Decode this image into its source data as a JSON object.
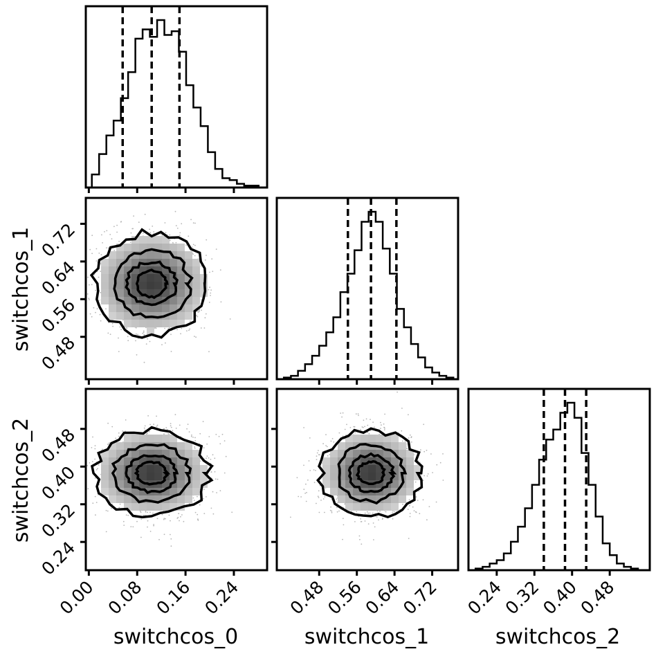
{
  "chart_data": {
    "type": "corner",
    "parameters": [
      "switchcos_0",
      "switchcos_1",
      "switchcos_2"
    ],
    "xlabels": [
      "switchcos_0",
      "switchcos_1",
      "switchcos_2"
    ],
    "ylabels": [
      "",
      "switchcos_1",
      "switchcos_2"
    ],
    "ranges": [
      [
        -0.005,
        0.295
      ],
      [
        0.39,
        0.775
      ],
      [
        0.18,
        0.565
      ]
    ],
    "ticks": [
      [
        "0.00",
        "0.08",
        "0.16",
        "0.24"
      ],
      [
        "0.48",
        "0.56",
        "0.64",
        "0.72"
      ],
      [
        "0.24",
        "0.32",
        "0.40",
        "0.48"
      ]
    ],
    "quantiles": [
      [
        0.056,
        0.104,
        0.15
      ],
      [
        0.541,
        0.59,
        0.644
      ],
      [
        0.34,
        0.385,
        0.43
      ]
    ],
    "histograms": [
      {
        "param": "switchcos_0",
        "bin_edges": [
          0.005,
          0.017,
          0.029,
          0.041,
          0.053,
          0.065,
          0.077,
          0.089,
          0.101,
          0.113,
          0.125,
          0.137,
          0.149,
          0.161,
          0.173,
          0.185,
          0.197,
          0.209,
          0.221,
          0.233,
          0.245,
          0.257,
          0.269,
          0.281
        ],
        "counts": [
          0.07,
          0.18,
          0.28,
          0.36,
          0.48,
          0.62,
          0.8,
          0.85,
          0.81,
          0.9,
          0.82,
          0.84,
          0.73,
          0.55,
          0.43,
          0.33,
          0.19,
          0.1,
          0.05,
          0.04,
          0.02,
          0.01,
          0.01
        ]
      },
      {
        "param": "switchcos_1",
        "bin_edges": [
          0.405,
          0.42,
          0.435,
          0.45,
          0.465,
          0.48,
          0.495,
          0.51,
          0.525,
          0.54,
          0.555,
          0.57,
          0.585,
          0.6,
          0.615,
          0.63,
          0.645,
          0.66,
          0.675,
          0.69,
          0.705,
          0.72,
          0.735,
          0.75,
          0.765
        ],
        "counts": [
          0.01,
          0.02,
          0.05,
          0.09,
          0.14,
          0.2,
          0.28,
          0.37,
          0.52,
          0.63,
          0.77,
          0.94,
          1.0,
          0.94,
          0.78,
          0.63,
          0.42,
          0.31,
          0.21,
          0.13,
          0.07,
          0.04,
          0.02,
          0.01
        ]
      },
      {
        "param": "switchcos_2",
        "bin_edges": [
          0.195,
          0.21,
          0.225,
          0.24,
          0.255,
          0.27,
          0.285,
          0.3,
          0.315,
          0.33,
          0.345,
          0.36,
          0.375,
          0.39,
          0.405,
          0.42,
          0.435,
          0.45,
          0.465,
          0.48,
          0.495,
          0.51,
          0.525,
          0.54
        ],
        "counts": [
          0.01,
          0.02,
          0.04,
          0.06,
          0.1,
          0.17,
          0.26,
          0.37,
          0.51,
          0.66,
          0.78,
          0.84,
          0.94,
          1.0,
          0.91,
          0.7,
          0.51,
          0.32,
          0.16,
          0.09,
          0.04,
          0.02,
          0.01
        ]
      }
    ],
    "density_2d": [
      {
        "x": "switchcos_0",
        "y": "switchcos_1",
        "mean": [
          0.104,
          0.593
        ],
        "std": [
          0.046,
          0.052
        ]
      },
      {
        "x": "switchcos_0",
        "y": "switchcos_2",
        "mean": [
          0.104,
          0.386
        ],
        "std": [
          0.046,
          0.044
        ]
      },
      {
        "x": "switchcos_1",
        "y": "switchcos_2",
        "mean": [
          0.59,
          0.386
        ],
        "std": [
          0.052,
          0.044
        ]
      }
    ],
    "contour_levels": [
      "0.5-sigma",
      "1-sigma",
      "1.5-sigma",
      "2-sigma"
    ],
    "line_color": "#000000",
    "quantile_line_style": "dashed"
  }
}
